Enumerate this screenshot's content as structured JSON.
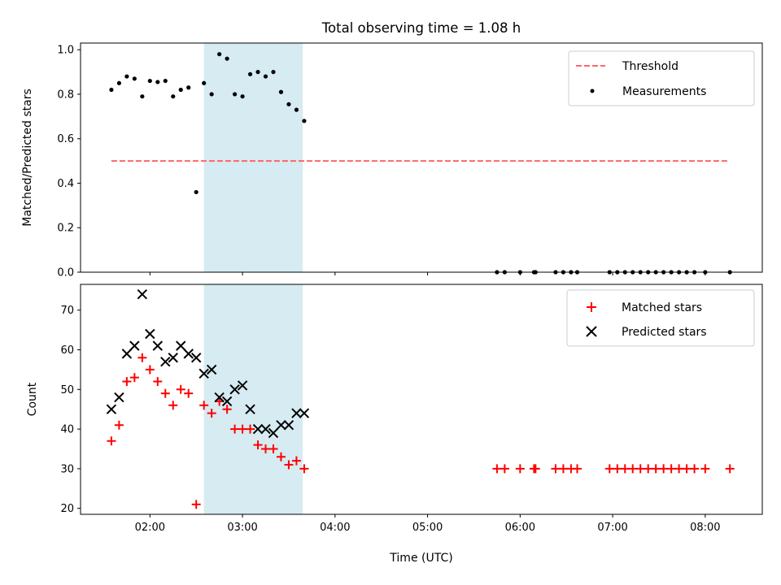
{
  "chart_data": [
    {
      "type": "scatter",
      "title": "Total observing time = 1.08 h",
      "ylabel": "Matched/Predicted stars",
      "xlabel": "",
      "xlim": [
        "01:15",
        "08:37"
      ],
      "ylim": [
        0,
        1.03
      ],
      "x_ticks": [
        "02:00",
        "03:00",
        "04:00",
        "05:00",
        "06:00",
        "07:00",
        "08:00"
      ],
      "y_ticks": [
        "0.0",
        "0.2",
        "0.4",
        "0.6",
        "0.8",
        "1.0"
      ],
      "shaded_span": {
        "x_start": "02:35",
        "x_end": "03:39",
        "color": "#add8e6"
      },
      "legend_position": "upper right",
      "series": [
        {
          "name": "Threshold",
          "kind": "dashed-line",
          "color": "#ff6666",
          "points": [
            {
              "x": "01:35",
              "y": 0.5
            },
            {
              "x": "08:15",
              "y": 0.5
            }
          ]
        },
        {
          "name": "Measurements",
          "kind": "dot",
          "color": "#000000",
          "points": [
            {
              "x": "01:35",
              "y": 0.82
            },
            {
              "x": "01:40",
              "y": 0.85
            },
            {
              "x": "01:45",
              "y": 0.88
            },
            {
              "x": "01:50",
              "y": 0.87
            },
            {
              "x": "01:55",
              "y": 0.79
            },
            {
              "x": "02:00",
              "y": 0.86
            },
            {
              "x": "02:05",
              "y": 0.855
            },
            {
              "x": "02:10",
              "y": 0.86
            },
            {
              "x": "02:15",
              "y": 0.79
            },
            {
              "x": "02:20",
              "y": 0.82
            },
            {
              "x": "02:25",
              "y": 0.83
            },
            {
              "x": "02:30",
              "y": 0.36
            },
            {
              "x": "02:35",
              "y": 0.85
            },
            {
              "x": "02:40",
              "y": 0.8
            },
            {
              "x": "02:45",
              "y": 0.98
            },
            {
              "x": "02:50",
              "y": 0.96
            },
            {
              "x": "02:55",
              "y": 0.8
            },
            {
              "x": "03:00",
              "y": 0.79
            },
            {
              "x": "03:05",
              "y": 0.89
            },
            {
              "x": "03:10",
              "y": 0.9
            },
            {
              "x": "03:15",
              "y": 0.88
            },
            {
              "x": "03:20",
              "y": 0.9
            },
            {
              "x": "03:25",
              "y": 0.81
            },
            {
              "x": "03:30",
              "y": 0.755
            },
            {
              "x": "03:35",
              "y": 0.73
            },
            {
              "x": "03:40",
              "y": 0.68
            },
            {
              "x": "05:45",
              "y": 0
            },
            {
              "x": "05:50",
              "y": 0
            },
            {
              "x": "06:00",
              "y": 0
            },
            {
              "x": "06:09",
              "y": 0
            },
            {
              "x": "06:10",
              "y": 0
            },
            {
              "x": "06:23",
              "y": 0
            },
            {
              "x": "06:28",
              "y": 0
            },
            {
              "x": "06:33",
              "y": 0
            },
            {
              "x": "06:37",
              "y": 0
            },
            {
              "x": "06:58",
              "y": 0
            },
            {
              "x": "07:03",
              "y": 0
            },
            {
              "x": "07:08",
              "y": 0
            },
            {
              "x": "07:13",
              "y": 0
            },
            {
              "x": "07:18",
              "y": 0
            },
            {
              "x": "07:23",
              "y": 0
            },
            {
              "x": "07:28",
              "y": 0
            },
            {
              "x": "07:33",
              "y": 0
            },
            {
              "x": "07:38",
              "y": 0
            },
            {
              "x": "07:43",
              "y": 0
            },
            {
              "x": "07:48",
              "y": 0
            },
            {
              "x": "07:53",
              "y": 0
            },
            {
              "x": "08:00",
              "y": 0
            },
            {
              "x": "08:16",
              "y": 0
            }
          ]
        }
      ]
    },
    {
      "type": "scatter",
      "title": "",
      "xlabel": "Time (UTC)",
      "ylabel": "Count",
      "xlim": [
        "01:15",
        "08:37"
      ],
      "ylim": [
        18.5,
        76.5
      ],
      "x_ticks": [
        "02:00",
        "03:00",
        "04:00",
        "05:00",
        "06:00",
        "07:00",
        "08:00"
      ],
      "y_ticks": [
        "20",
        "30",
        "40",
        "50",
        "60",
        "70"
      ],
      "shaded_span": {
        "x_start": "02:35",
        "x_end": "03:39",
        "color": "#add8e6"
      },
      "legend_position": "upper right",
      "series": [
        {
          "name": "Matched stars",
          "kind": "plus",
          "color": "#ff0000",
          "points": [
            {
              "x": "01:35",
              "y": 37
            },
            {
              "x": "01:40",
              "y": 41
            },
            {
              "x": "01:45",
              "y": 52
            },
            {
              "x": "01:50",
              "y": 53
            },
            {
              "x": "01:55",
              "y": 58
            },
            {
              "x": "02:00",
              "y": 55
            },
            {
              "x": "02:05",
              "y": 52
            },
            {
              "x": "02:10",
              "y": 49
            },
            {
              "x": "02:15",
              "y": 46
            },
            {
              "x": "02:20",
              "y": 50
            },
            {
              "x": "02:25",
              "y": 49
            },
            {
              "x": "02:30",
              "y": 21
            },
            {
              "x": "02:35",
              "y": 46
            },
            {
              "x": "02:40",
              "y": 44
            },
            {
              "x": "02:45",
              "y": 47
            },
            {
              "x": "02:50",
              "y": 45
            },
            {
              "x": "02:55",
              "y": 40
            },
            {
              "x": "03:00",
              "y": 40
            },
            {
              "x": "03:05",
              "y": 40
            },
            {
              "x": "03:10",
              "y": 36
            },
            {
              "x": "03:15",
              "y": 35
            },
            {
              "x": "03:20",
              "y": 35
            },
            {
              "x": "03:25",
              "y": 33
            },
            {
              "x": "03:30",
              "y": 31
            },
            {
              "x": "03:35",
              "y": 32
            },
            {
              "x": "03:40",
              "y": 30
            },
            {
              "x": "05:45",
              "y": 30
            },
            {
              "x": "05:50",
              "y": 30
            },
            {
              "x": "06:00",
              "y": 30
            },
            {
              "x": "06:09",
              "y": 30
            },
            {
              "x": "06:10",
              "y": 30
            },
            {
              "x": "06:23",
              "y": 30
            },
            {
              "x": "06:28",
              "y": 30
            },
            {
              "x": "06:33",
              "y": 30
            },
            {
              "x": "06:37",
              "y": 30
            },
            {
              "x": "06:58",
              "y": 30
            },
            {
              "x": "07:03",
              "y": 30
            },
            {
              "x": "07:08",
              "y": 30
            },
            {
              "x": "07:13",
              "y": 30
            },
            {
              "x": "07:18",
              "y": 30
            },
            {
              "x": "07:23",
              "y": 30
            },
            {
              "x": "07:28",
              "y": 30
            },
            {
              "x": "07:33",
              "y": 30
            },
            {
              "x": "07:38",
              "y": 30
            },
            {
              "x": "07:43",
              "y": 30
            },
            {
              "x": "07:48",
              "y": 30
            },
            {
              "x": "07:53",
              "y": 30
            },
            {
              "x": "08:00",
              "y": 30
            },
            {
              "x": "08:16",
              "y": 30
            }
          ]
        },
        {
          "name": "Predicted stars",
          "kind": "cross",
          "color": "#000000",
          "points": [
            {
              "x": "01:35",
              "y": 45
            },
            {
              "x": "01:40",
              "y": 48
            },
            {
              "x": "01:45",
              "y": 59
            },
            {
              "x": "01:50",
              "y": 61
            },
            {
              "x": "01:55",
              "y": 74
            },
            {
              "x": "02:00",
              "y": 64
            },
            {
              "x": "02:05",
              "y": 61
            },
            {
              "x": "02:10",
              "y": 57
            },
            {
              "x": "02:15",
              "y": 58
            },
            {
              "x": "02:20",
              "y": 61
            },
            {
              "x": "02:25",
              "y": 59
            },
            {
              "x": "02:30",
              "y": 58
            },
            {
              "x": "02:35",
              "y": 54
            },
            {
              "x": "02:40",
              "y": 55
            },
            {
              "x": "02:45",
              "y": 48
            },
            {
              "x": "02:50",
              "y": 47
            },
            {
              "x": "02:55",
              "y": 50
            },
            {
              "x": "03:00",
              "y": 51
            },
            {
              "x": "03:05",
              "y": 45
            },
            {
              "x": "03:10",
              "y": 40
            },
            {
              "x": "03:15",
              "y": 40
            },
            {
              "x": "03:20",
              "y": 39
            },
            {
              "x": "03:25",
              "y": 41
            },
            {
              "x": "03:30",
              "y": 41
            },
            {
              "x": "03:35",
              "y": 44
            },
            {
              "x": "03:40",
              "y": 44
            }
          ]
        }
      ]
    }
  ]
}
